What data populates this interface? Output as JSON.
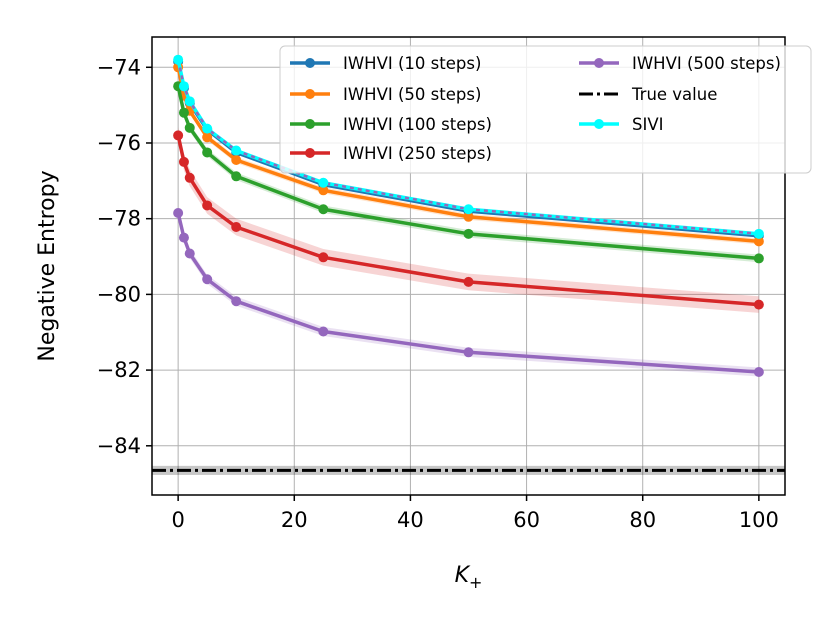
{
  "chart_data": {
    "type": "line",
    "xlabel_main": "K",
    "xlabel_sub": "+",
    "ylabel": "Negative Entropy",
    "xlim": [
      -4.5,
      104.5
    ],
    "ylim": [
      -85.3,
      -73.2
    ],
    "x_ticks": [
      0,
      20,
      40,
      60,
      80,
      100
    ],
    "x_tick_labels": [
      "0",
      "20",
      "40",
      "60",
      "80",
      "100"
    ],
    "y_ticks": [
      -74,
      -76,
      -78,
      -80,
      -82,
      -84
    ],
    "y_tick_labels": [
      "−74",
      "−76",
      "−78",
      "−80",
      "−82",
      "−84"
    ],
    "grid": true,
    "legend_position": "top-right",
    "x": [
      0,
      1,
      2,
      5,
      10,
      25,
      50,
      100
    ],
    "series": [
      {
        "name": "IWHVI (10 steps)",
        "color": "#1f77b4",
        "values": [
          -73.85,
          -74.55,
          -74.95,
          -75.65,
          -76.25,
          -77.1,
          -77.8,
          -78.45
        ],
        "band": 0.05
      },
      {
        "name": "IWHVI (50 steps)",
        "color": "#ff7f0e",
        "values": [
          -74.0,
          -74.75,
          -75.15,
          -75.85,
          -76.45,
          -77.25,
          -77.95,
          -78.6
        ],
        "band": 0.08
      },
      {
        "name": "IWHVI (100 steps)",
        "color": "#2ca02c",
        "values": [
          -74.5,
          -75.2,
          -75.6,
          -76.25,
          -76.88,
          -77.75,
          -78.4,
          -79.05
        ],
        "band": 0.1
      },
      {
        "name": "IWHVI (250 steps)",
        "color": "#d62728",
        "values": [
          -75.8,
          -76.5,
          -76.92,
          -77.65,
          -78.22,
          -79.02,
          -79.67,
          -80.27
        ],
        "band": 0.22
      },
      {
        "name": "IWHVI (500 steps)",
        "color": "#9467bd",
        "values": [
          -77.85,
          -78.5,
          -78.92,
          -79.6,
          -80.18,
          -80.98,
          -81.53,
          -82.05
        ],
        "band": 0.12
      },
      {
        "name": "SIVI",
        "color": "#00ffff",
        "values": [
          -73.8,
          -74.5,
          -74.9,
          -75.62,
          -76.2,
          -77.05,
          -77.75,
          -78.4
        ],
        "band": 0.05,
        "dashed_overlay": "#9467bd"
      }
    ],
    "true_value": {
      "name": "True value",
      "color": "#000000",
      "value": -84.65,
      "band": 0.12
    },
    "legend_order": [
      "IWHVI (10 steps)",
      "IWHVI (50 steps)",
      "IWHVI (100 steps)",
      "IWHVI (250 steps)",
      "IWHVI (500 steps)",
      "True value",
      "SIVI"
    ]
  }
}
